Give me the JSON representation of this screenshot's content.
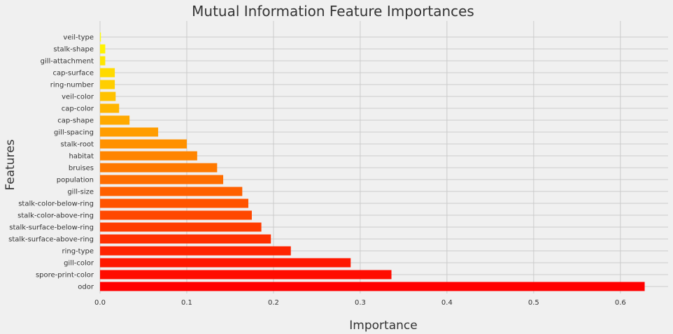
{
  "chart_data": {
    "type": "bar",
    "orientation": "horizontal",
    "title": "Mutual Information Feature Importances",
    "xlabel": "Importance",
    "ylabel": "Features",
    "xlim": [
      0,
      0.655
    ],
    "xticks": [
      "0.0",
      "0.1",
      "0.2",
      "0.3",
      "0.4",
      "0.5",
      "0.6"
    ],
    "grid": true,
    "colormap": "autumn",
    "categories": [
      "odor",
      "spore-print-color",
      "gill-color",
      "ring-type",
      "stalk-surface-above-ring",
      "stalk-surface-below-ring",
      "stalk-color-above-ring",
      "stalk-color-below-ring",
      "gill-size",
      "population",
      "bruises",
      "habitat",
      "stalk-root",
      "gill-spacing",
      "cap-shape",
      "cap-color",
      "veil-color",
      "ring-number",
      "cap-surface",
      "gill-attachment",
      "stalk-shape",
      "veil-type"
    ],
    "values": [
      0.628,
      0.336,
      0.289,
      0.22,
      0.197,
      0.186,
      0.175,
      0.171,
      0.164,
      0.142,
      0.135,
      0.112,
      0.1,
      0.067,
      0.034,
      0.022,
      0.018,
      0.017,
      0.017,
      0.006,
      0.006,
      0.001
    ],
    "colors": [
      "#ff0000",
      "#ff0c00",
      "#ff1800",
      "#ff2400",
      "#ff3000",
      "#ff3c00",
      "#ff4800",
      "#ff5400",
      "#ff6000",
      "#ff6d00",
      "#ff7900",
      "#ff8500",
      "#ff9100",
      "#ff9d00",
      "#ffa900",
      "#ffb500",
      "#ffc200",
      "#ffce00",
      "#ffda00",
      "#ffe600",
      "#fff200",
      "#ffff00"
    ]
  }
}
